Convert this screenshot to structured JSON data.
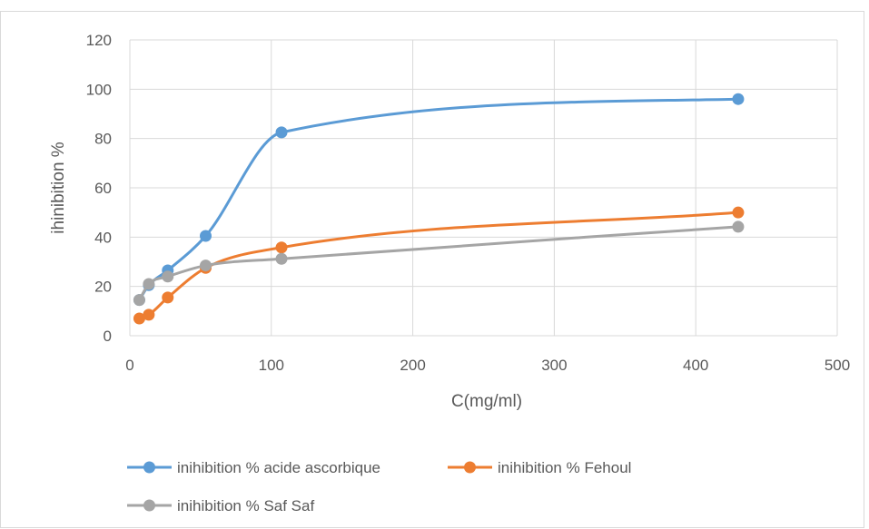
{
  "chart_data": {
    "type": "scatter",
    "title": "",
    "xlabel": "C(mg/ml)",
    "ylabel": "ihinibition %",
    "xlim": [
      0,
      500
    ],
    "ylim": [
      0,
      120
    ],
    "xticks": [
      0,
      100,
      200,
      300,
      400,
      500
    ],
    "yticks": [
      0,
      20,
      40,
      60,
      80,
      100,
      120
    ],
    "grid": true,
    "legend_position": "bottom",
    "smooth_lines": true,
    "series": [
      {
        "name": "inihibition % acide ascorbique",
        "color": "#5b9bd5",
        "x": [
          6.7,
          13.4,
          26.8,
          53.6,
          107.2,
          430
        ],
        "y": [
          14.5,
          20.5,
          26.5,
          40.5,
          82.5,
          96
        ]
      },
      {
        "name": "inihibition % Fehoul",
        "color": "#ed7d31",
        "x": [
          6.7,
          13.4,
          26.8,
          53.6,
          107.2,
          430
        ],
        "y": [
          7,
          8.5,
          15.5,
          27.5,
          35.8,
          50
        ]
      },
      {
        "name": "inihibition % Saf Saf",
        "color": "#a5a5a5",
        "x": [
          6.7,
          13.4,
          26.8,
          53.6,
          107.2,
          430
        ],
        "y": [
          14.5,
          21,
          24,
          28.5,
          31.2,
          44.2
        ]
      }
    ]
  }
}
